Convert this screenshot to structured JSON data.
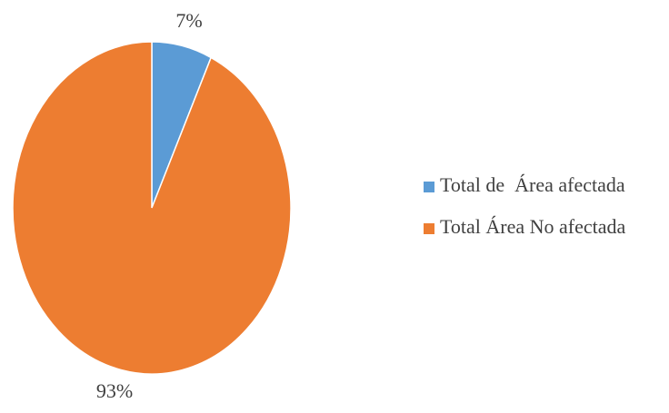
{
  "chart_data": {
    "type": "pie",
    "categories": [
      "Total de  Área afectada",
      "Total Área No afectada"
    ],
    "values": [
      7,
      93
    ],
    "value_labels": [
      "7%",
      "93%"
    ],
    "colors": [
      "#5b9bd5",
      "#ed7d31"
    ],
    "legend": "right"
  }
}
